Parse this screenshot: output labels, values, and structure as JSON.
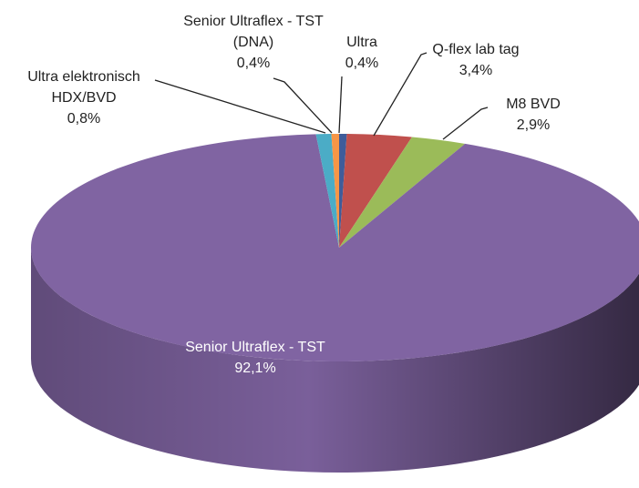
{
  "chart_data": {
    "type": "pie3d",
    "categories": [
      "Ultra",
      "Q-flex lab tag",
      "M8 BVD",
      "Senior Ultraflex - TST",
      "Ultra elektronisch HDX/BVD",
      "Senior Ultraflex - TST (DNA)"
    ],
    "values": [
      0.4,
      3.4,
      2.9,
      92.1,
      0.8,
      0.4
    ],
    "value_labels": [
      "0,4%",
      "3,4%",
      "2,9%",
      "92,1%",
      "0,8%",
      "0,4%"
    ],
    "colors": [
      "#3f5c9a",
      "#c0504d",
      "#9bbb59",
      "#8064a2",
      "#4bacc6",
      "#f79646"
    ]
  }
}
